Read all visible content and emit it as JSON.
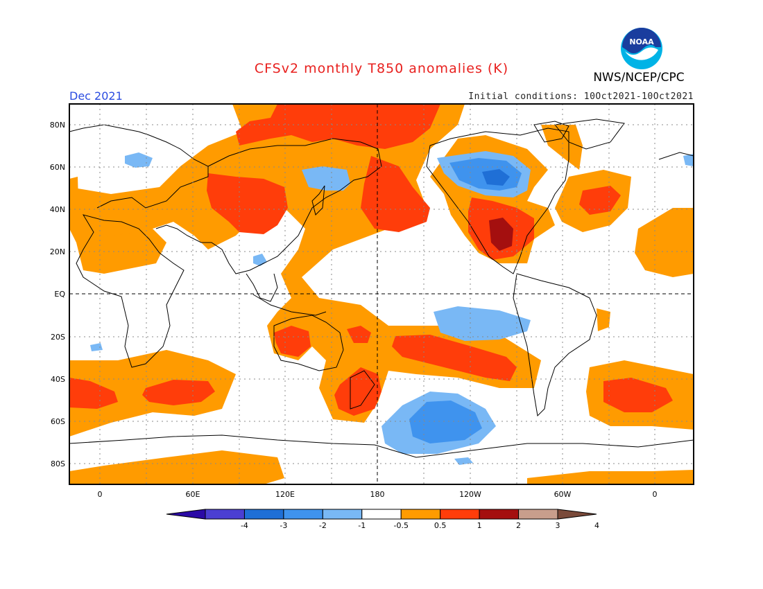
{
  "title": "CFSv2 monthly T850 anomalies (K)",
  "org": "NWS/NCEP/CPC",
  "logo_text": "NOAA",
  "month": "Dec 2021",
  "initial_conditions": "Initial conditions: 10Oct2021-10Oct2021",
  "lat_labels": [
    "80N",
    "60N",
    "40N",
    "20N",
    "EQ",
    "20S",
    "40S",
    "60S",
    "80S"
  ],
  "lon_labels": [
    "0",
    "60E",
    "120E",
    "180",
    "120W",
    "60W",
    "0"
  ],
  "colorbar": {
    "labels": [
      "-4",
      "-3",
      "-2",
      "-1",
      "-0.5",
      "0.5",
      "1",
      "2",
      "3",
      "4"
    ],
    "colors": [
      "#2b0aa6",
      "#4b3fd2",
      "#1f6fd6",
      "#3f93ee",
      "#79b8f5",
      "#ffffff",
      "#ff9b00",
      "#ff3d0a",
      "#a40f0f",
      "#c89e8c",
      "#7a4a3a"
    ]
  },
  "colors": {
    "orange": "#ff9b00",
    "red": "#ff3d0a",
    "darkred": "#a40f0f",
    "lightblue": "#79b8f5",
    "blue": "#3f93ee",
    "midblue": "#1f6fd6"
  }
}
